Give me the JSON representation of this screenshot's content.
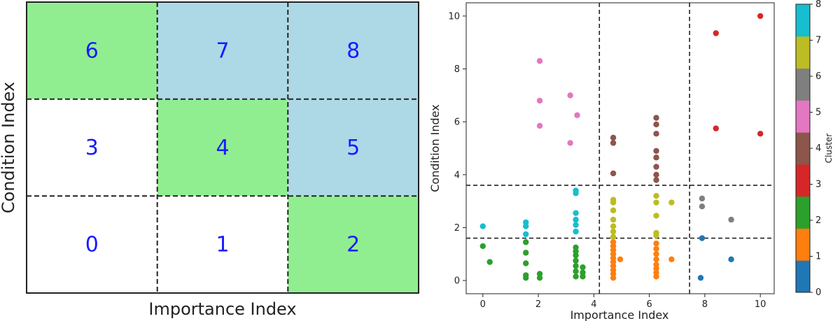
{
  "chart_data": [
    {
      "type": "heatmap",
      "title": "",
      "xlabel": "Importance Index",
      "ylabel": "Condition Index",
      "rows": 3,
      "cols": 3,
      "colors": {
        "green": "#90ee90",
        "blue": "#add8e6",
        "white": "#ffffff"
      },
      "cells": [
        {
          "label": "6",
          "row": 0,
          "col": 0,
          "fill": "green"
        },
        {
          "label": "7",
          "row": 0,
          "col": 1,
          "fill": "blue"
        },
        {
          "label": "8",
          "row": 0,
          "col": 2,
          "fill": "blue"
        },
        {
          "label": "3",
          "row": 1,
          "col": 0,
          "fill": "white"
        },
        {
          "label": "4",
          "row": 1,
          "col": 1,
          "fill": "green"
        },
        {
          "label": "5",
          "row": 1,
          "col": 2,
          "fill": "blue"
        },
        {
          "label": "0",
          "row": 2,
          "col": 0,
          "fill": "white"
        },
        {
          "label": "1",
          "row": 2,
          "col": 1,
          "fill": "white"
        },
        {
          "label": "2",
          "row": 2,
          "col": 2,
          "fill": "green"
        }
      ]
    },
    {
      "type": "scatter",
      "title": "",
      "xlabel": "Importance Index",
      "ylabel": "Condition Index",
      "xlim": [
        -0.6,
        10.5
      ],
      "ylim": [
        -0.5,
        10.5
      ],
      "xticks": [
        0,
        2,
        4,
        6,
        8,
        10
      ],
      "yticks": [
        0,
        2,
        4,
        6,
        8,
        10
      ],
      "xtick_labels": [
        "0",
        "2",
        "4",
        "6",
        "8",
        "10"
      ],
      "ytick_labels": [
        "0",
        "2",
        "4",
        "6",
        "8",
        "10"
      ],
      "vlines": [
        4.2,
        7.45
      ],
      "hlines": [
        1.6,
        3.6
      ],
      "colorbar": {
        "label": "Cluster",
        "range": [
          0,
          8
        ],
        "tick_labels": [
          "0",
          "1",
          "2",
          "3",
          "4",
          "5",
          "6",
          "7",
          "8"
        ],
        "colors": [
          "#1f77b4",
          "#ff7f0e",
          "#2ca02c",
          "#d62728",
          "#8c564b",
          "#e377c2",
          "#7f7f7f",
          "#bcbd22",
          "#17becf"
        ]
      },
      "series": [
        {
          "name": "Cluster 0",
          "color": "#1f77b4",
          "points": [
            [
              7.85,
              0.1
            ],
            [
              7.9,
              1.6
            ],
            [
              8.95,
              0.8
            ]
          ]
        },
        {
          "name": "Cluster 1",
          "color": "#ff7f0e",
          "points": [
            [
              4.7,
              0.1
            ],
            [
              4.7,
              0.25
            ],
            [
              4.7,
              0.4
            ],
            [
              4.7,
              0.55
            ],
            [
              4.7,
              0.7
            ],
            [
              4.7,
              0.85
            ],
            [
              4.7,
              1.0
            ],
            [
              4.7,
              1.15
            ],
            [
              4.7,
              1.3
            ],
            [
              4.7,
              1.45
            ],
            [
              4.95,
              0.8
            ],
            [
              6.25,
              0.15
            ],
            [
              6.25,
              0.3
            ],
            [
              6.25,
              0.45
            ],
            [
              6.25,
              0.6
            ],
            [
              6.25,
              0.8
            ],
            [
              6.25,
              1.0
            ],
            [
              6.25,
              1.2
            ],
            [
              6.25,
              1.4
            ],
            [
              6.8,
              0.8
            ]
          ]
        },
        {
          "name": "Cluster 2",
          "color": "#2ca02c",
          "points": [
            [
              0.0,
              1.3
            ],
            [
              0.25,
              0.7
            ],
            [
              1.55,
              0.1
            ],
            [
              1.55,
              0.2
            ],
            [
              1.55,
              0.65
            ],
            [
              1.55,
              1.05
            ],
            [
              1.55,
              1.45
            ],
            [
              2.05,
              0.1
            ],
            [
              2.05,
              0.25
            ],
            [
              3.35,
              0.15
            ],
            [
              3.35,
              0.35
            ],
            [
              3.35,
              0.55
            ],
            [
              3.35,
              0.75
            ],
            [
              3.35,
              0.95
            ],
            [
              3.35,
              1.1
            ],
            [
              3.35,
              1.25
            ],
            [
              3.6,
              0.15
            ],
            [
              3.6,
              0.3
            ],
            [
              3.6,
              0.5
            ]
          ]
        },
        {
          "name": "Cluster 3",
          "color": "#d62728",
          "points": [
            [
              8.4,
              9.35
            ],
            [
              8.4,
              5.75
            ],
            [
              10.0,
              10.0
            ],
            [
              10.0,
              5.55
            ]
          ]
        },
        {
          "name": "Cluster 4",
          "color": "#8c564b",
          "points": [
            [
              4.7,
              4.05
            ],
            [
              4.7,
              5.2
            ],
            [
              4.7,
              5.4
            ],
            [
              6.25,
              3.8
            ],
            [
              6.25,
              4.0
            ],
            [
              6.25,
              4.3
            ],
            [
              6.25,
              4.65
            ],
            [
              6.25,
              4.9
            ],
            [
              6.25,
              5.55
            ],
            [
              6.25,
              5.9
            ],
            [
              6.25,
              6.15
            ]
          ]
        },
        {
          "name": "Cluster 5",
          "color": "#e377c2",
          "points": [
            [
              2.05,
              8.3
            ],
            [
              2.05,
              6.8
            ],
            [
              2.05,
              5.85
            ],
            [
              3.15,
              7.0
            ],
            [
              3.15,
              5.2
            ],
            [
              3.4,
              6.25
            ]
          ]
        },
        {
          "name": "Cluster 6",
          "color": "#7f7f7f",
          "points": [
            [
              7.9,
              3.1
            ],
            [
              7.9,
              2.8
            ],
            [
              8.95,
              2.3
            ]
          ]
        },
        {
          "name": "Cluster 7",
          "color": "#bcbd22",
          "points": [
            [
              4.7,
              3.05
            ],
            [
              4.7,
              2.95
            ],
            [
              4.7,
              2.65
            ],
            [
              4.7,
              2.3
            ],
            [
              4.7,
              2.05
            ],
            [
              4.7,
              1.85
            ],
            [
              4.7,
              1.65
            ],
            [
              6.25,
              3.2
            ],
            [
              6.25,
              2.95
            ],
            [
              6.25,
              2.45
            ],
            [
              6.25,
              1.8
            ],
            [
              6.25,
              1.7
            ],
            [
              6.8,
              2.95
            ]
          ]
        },
        {
          "name": "Cluster 8",
          "color": "#17becf",
          "points": [
            [
              0.0,
              2.05
            ],
            [
              1.55,
              2.2
            ],
            [
              1.55,
              2.05
            ],
            [
              1.55,
              1.75
            ],
            [
              3.35,
              3.4
            ],
            [
              3.35,
              3.3
            ],
            [
              3.35,
              2.55
            ],
            [
              3.35,
              2.3
            ],
            [
              3.35,
              2.1
            ],
            [
              3.35,
              1.85
            ]
          ]
        }
      ]
    }
  ]
}
